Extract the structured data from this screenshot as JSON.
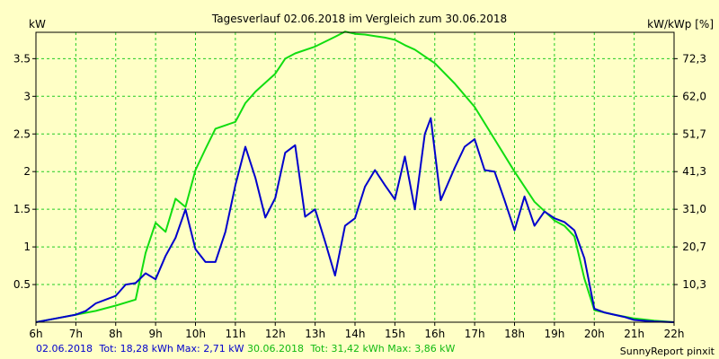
{
  "chart_data": {
    "type": "line",
    "title": "Tagesverlauf 02.06.2018 im Vergleich zum 30.06.2018",
    "ylabel_left": "kW",
    "ylabel_right": "kW/kWp [%]",
    "xlim": [
      6,
      22
    ],
    "ylim": [
      0,
      3.85
    ],
    "x_ticks": [
      "6h",
      "7h",
      "8h",
      "9h",
      "10h",
      "11h",
      "12h",
      "13h",
      "14h",
      "15h",
      "16h",
      "17h",
      "18h",
      "19h",
      "20h",
      "21h",
      "22h"
    ],
    "y_ticks_left": [
      "0.5",
      "1",
      "1.5",
      "2",
      "2.5",
      "3",
      "3.5"
    ],
    "y_ticks_right": [
      "10,3",
      "20,7",
      "31,0",
      "41,3",
      "51,7",
      "62,0",
      "72,3"
    ],
    "grid": true,
    "series": [
      {
        "name": "02.06.2018",
        "color": "#0000cc",
        "x": [
          6,
          6.5,
          7,
          7.25,
          7.5,
          7.75,
          8,
          8.25,
          8.5,
          8.75,
          9,
          9.25,
          9.5,
          9.75,
          10,
          10.25,
          10.5,
          10.75,
          11,
          11.25,
          11.5,
          11.75,
          12,
          12.25,
          12.5,
          12.75,
          13,
          13.25,
          13.5,
          13.75,
          14,
          14.25,
          14.5,
          14.75,
          15,
          15.25,
          15.5,
          15.75,
          15.9,
          16.15,
          16.5,
          16.75,
          17,
          17.25,
          17.5,
          17.75,
          18,
          18.25,
          18.5,
          18.75,
          19,
          19.25,
          19.5,
          19.75,
          20,
          20.25,
          20.5,
          20.75,
          21,
          21.5,
          22
        ],
        "y": [
          0,
          0.05,
          0.1,
          0.15,
          0.25,
          0.3,
          0.35,
          0.5,
          0.52,
          0.65,
          0.57,
          0.88,
          1.12,
          1.5,
          0.97,
          0.8,
          0.8,
          1.2,
          1.82,
          2.33,
          1.92,
          1.39,
          1.65,
          2.25,
          2.35,
          1.4,
          1.5,
          1.07,
          0.62,
          1.28,
          1.38,
          1.8,
          2.02,
          1.82,
          1.63,
          2.2,
          1.5,
          2.5,
          2.71,
          1.62,
          2.05,
          2.33,
          2.43,
          2.02,
          2.0,
          1.62,
          1.22,
          1.67,
          1.28,
          1.47,
          1.38,
          1.33,
          1.22,
          0.85,
          0.18,
          0.13,
          0.1,
          0.07,
          0.03,
          0.01,
          0
        ]
      },
      {
        "name": "30.06.2018",
        "color": "#11dd11",
        "x": [
          6,
          6.5,
          7,
          7.5,
          8,
          8.5,
          8.75,
          9,
          9.25,
          9.5,
          9.75,
          10,
          10.25,
          10.5,
          11,
          11.25,
          11.5,
          12,
          12.25,
          12.5,
          13,
          13.5,
          13.75,
          14,
          14.25,
          14.5,
          14.75,
          15,
          15.25,
          15.5,
          16,
          16.5,
          17,
          17.5,
          18,
          18.5,
          19,
          19.25,
          19.5,
          19.75,
          20,
          20.5,
          21,
          21.5,
          22
        ],
        "y": [
          0,
          0.05,
          0.1,
          0.15,
          0.22,
          0.3,
          0.92,
          1.32,
          1.2,
          1.64,
          1.53,
          2.02,
          2.3,
          2.57,
          2.66,
          2.91,
          3.06,
          3.3,
          3.5,
          3.57,
          3.66,
          3.79,
          3.86,
          3.83,
          3.82,
          3.8,
          3.78,
          3.75,
          3.68,
          3.62,
          3.44,
          3.17,
          2.86,
          2.43,
          2.0,
          1.6,
          1.35,
          1.28,
          1.14,
          0.58,
          0.16,
          0.1,
          0.05,
          0.02,
          0
        ]
      }
    ]
  },
  "footer": {
    "series1_name": "02.06.2018",
    "series1_stats": "Tot: 18,28 kWh Max: 2,71 kW",
    "series2_name": "30.06.2018",
    "series2_stats": "Tot: 31,42 kWh Max: 3,86 kW",
    "credit": "SunnyReport pinxit"
  },
  "colors": {
    "background": "#ffffc6",
    "grid": "#22cc22",
    "frame": "#000000"
  }
}
